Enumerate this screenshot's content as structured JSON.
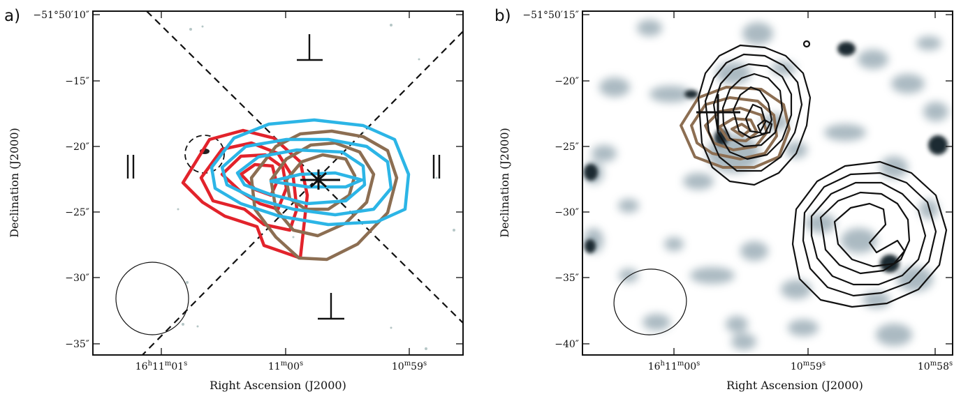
{
  "panels": [
    {
      "label": "a)",
      "ylabel": "Declination (J2000)",
      "xlabel": "Right Ascension (J2000)",
      "yticks": [
        "−51°50′10″",
        "−15″",
        "−20″",
        "−25″",
        "−30″",
        "−35″"
      ],
      "xticks": [
        {
          "main": "16",
          "unit1": "h",
          "mid": "11",
          "unit2": "m",
          "end": "01",
          "unit3": "s"
        },
        {
          "main": "11",
          "unit1": "m",
          "mid": "00",
          "unit2": "s"
        },
        {
          "main": "10",
          "unit1": "m",
          "mid": "59",
          "unit2": "s"
        }
      ],
      "polarization_symbols": [
        "⊥",
        "⊥",
        "∥",
        "∥"
      ],
      "contour_colors": {
        "red": "#e2232b",
        "cyan": "#2cb5e6",
        "brown": "#8c6e52"
      }
    },
    {
      "label": "b)",
      "ylabel": "Declination (J2000)",
      "xlabel": "Right Ascension (J2000)",
      "yticks": [
        "−51°50′15″",
        "−20″",
        "−25″",
        "−30″",
        "−35″",
        "−40″"
      ],
      "xticks": [
        {
          "main": "16",
          "unit1": "h",
          "mid": "11",
          "unit2": "m",
          "end": "00",
          "unit3": "s"
        },
        {
          "main": "10",
          "unit1": "m",
          "mid": "59",
          "unit2": "s"
        },
        {
          "main": "10",
          "unit1": "m",
          "mid": "58",
          "unit2": "s"
        }
      ],
      "contour_colors": {
        "black": "#111111",
        "brown": "#8c6e52"
      }
    }
  ]
}
